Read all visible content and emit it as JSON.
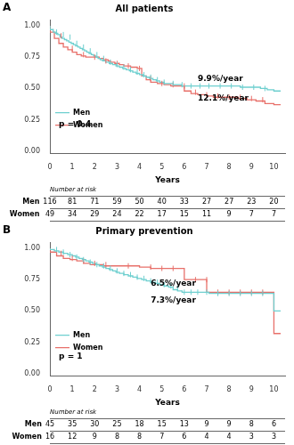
{
  "chart_data": [
    {
      "type": "step",
      "panel_label": "A",
      "title": "All patients",
      "x_label": "Years",
      "xlim": [
        0,
        10.5
      ],
      "ylim": [
        -0.02,
        1.05
      ],
      "xticks": [
        0,
        1,
        2,
        3,
        4,
        5,
        6,
        7,
        8,
        9,
        10
      ],
      "yticks": [
        {
          "value": 0.0,
          "label": "0.00"
        },
        0.25,
        {
          "value": 0.5,
          "label": "0.50"
        },
        0.75,
        {
          "value": 1.0,
          "label": "1.00"
        }
      ],
      "grid": false,
      "legend": "upper right",
      "series": [
        {
          "name": "Men",
          "color": "#6ecfcf",
          "x": [
            0,
            0.15,
            0.25,
            0.35,
            0.45,
            0.55,
            0.65,
            0.75,
            0.85,
            0.95,
            1.05,
            1.15,
            1.25,
            1.35,
            1.45,
            1.55,
            1.65,
            1.75,
            1.85,
            1.95,
            2.05,
            2.15,
            2.25,
            2.35,
            2.5,
            2.65,
            2.8,
            2.95,
            3.1,
            3.25,
            3.4,
            3.55,
            3.7,
            3.85,
            4.0,
            4.15,
            4.3,
            4.45,
            4.6,
            4.75,
            4.9,
            5.1,
            5.3,
            5.5,
            5.7,
            5.9,
            6.1,
            6.4,
            6.7,
            7.0,
            7.3,
            7.6,
            7.9,
            8.2,
            8.5,
            8.8,
            9.1,
            9.4,
            9.7,
            10.0,
            10.3
          ],
          "values": [
            1.0,
            0.97,
            0.95,
            0.94,
            0.93,
            0.91,
            0.9,
            0.89,
            0.88,
            0.87,
            0.86,
            0.85,
            0.84,
            0.83,
            0.82,
            0.81,
            0.8,
            0.79,
            0.78,
            0.77,
            0.76,
            0.75,
            0.74,
            0.73,
            0.72,
            0.71,
            0.7,
            0.69,
            0.68,
            0.67,
            0.66,
            0.65,
            0.64,
            0.63,
            0.62,
            0.61,
            0.6,
            0.59,
            0.58,
            0.57,
            0.56,
            0.55,
            0.54,
            0.54,
            0.53,
            0.53,
            0.52,
            0.52,
            0.52,
            0.52,
            0.52,
            0.52,
            0.52,
            0.52,
            0.52,
            0.51,
            0.51,
            0.51,
            0.5,
            0.49,
            0.48
          ],
          "censored": {
            "x": [
              0.3,
              0.6,
              0.9,
              1.2,
              1.5,
              1.8,
              2.1,
              2.4,
              2.7,
              3.0,
              3.3,
              3.6,
              3.9,
              4.2,
              4.5,
              4.8,
              5.1,
              5.5,
              5.9,
              6.3,
              6.7,
              7.1,
              7.6,
              8.1,
              8.6,
              9.1,
              9.6
            ],
            "values": [
              0.95,
              0.93,
              0.91,
              0.86,
              0.83,
              0.8,
              0.77,
              0.74,
              0.71,
              0.69,
              0.67,
              0.65,
              0.63,
              0.61,
              0.59,
              0.57,
              0.55,
              0.54,
              0.53,
              0.52,
              0.52,
              0.52,
              0.52,
              0.52,
              0.51,
              0.51,
              0.5
            ]
          }
        },
        {
          "name": "Women",
          "color": "#e8706a",
          "x": [
            0,
            0.2,
            0.4,
            0.6,
            0.8,
            1.0,
            1.2,
            1.4,
            1.6,
            1.8,
            2.0,
            2.2,
            2.4,
            2.6,
            2.7,
            2.9,
            3.1,
            3.3,
            3.6,
            3.9,
            4.1,
            4.3,
            4.5,
            4.8,
            5.1,
            5.4,
            5.8,
            6.0,
            6.3,
            6.6,
            7.0,
            7.3,
            7.7,
            8.0,
            8.4,
            8.8,
            9.2,
            9.6,
            10.0,
            10.3
          ],
          "values": [
            1.0,
            0.95,
            0.9,
            0.86,
            0.83,
            0.81,
            0.79,
            0.77,
            0.76,
            0.75,
            0.75,
            0.75,
            0.74,
            0.73,
            0.72,
            0.71,
            0.7,
            0.69,
            0.68,
            0.67,
            0.66,
            0.6,
            0.57,
            0.55,
            0.54,
            0.53,
            0.52,
            0.52,
            0.48,
            0.46,
            0.45,
            0.44,
            0.43,
            0.43,
            0.43,
            0.42,
            0.41,
            0.4,
            0.38,
            0.37
          ],
          "censored": {
            "x": [
              0.5,
              1.0,
              1.5,
              2.0,
              2.5,
              3.0,
              3.5,
              4.0,
              4.5,
              5.0,
              5.5,
              6.0,
              6.5,
              7.0,
              7.5,
              8.0,
              8.5,
              9.0,
              9.5
            ],
            "values": [
              0.92,
              0.82,
              0.77,
              0.75,
              0.72,
              0.7,
              0.68,
              0.66,
              0.58,
              0.54,
              0.53,
              0.52,
              0.47,
              0.45,
              0.44,
              0.43,
              0.43,
              0.42,
              0.41
            ]
          }
        }
      ],
      "annotations": [
        {
          "text": "9.9%/year",
          "x": 6.6,
          "y": 0.56
        },
        {
          "text": "12.1%/year",
          "x": 6.6,
          "y": 0.4
        },
        {
          "text": "p = 0.4",
          "x": 0.4,
          "y": 0.2
        }
      ],
      "risk_table": {
        "title": "Number at risk",
        "rows": [
          {
            "name": "Men",
            "values": [
              116,
              81,
              71,
              59,
              50,
              40,
              33,
              27,
              27,
              23,
              20
            ]
          },
          {
            "name": "Women",
            "values": [
              49,
              34,
              29,
              24,
              22,
              17,
              15,
              11,
              9,
              7,
              7
            ]
          }
        ]
      }
    },
    {
      "type": "step",
      "panel_label": "B",
      "title": "Primary prevention",
      "x_label": "Years",
      "xlim": [
        0,
        10.5
      ],
      "ylim": [
        -0.02,
        1.05
      ],
      "xticks": [
        0,
        1,
        2,
        3,
        4,
        5,
        6,
        7,
        8,
        9,
        10
      ],
      "yticks": [
        {
          "value": 0.0,
          "label": "0.00"
        },
        0.25,
        {
          "value": 0.5,
          "label": "0.50"
        },
        0.75,
        {
          "value": 1.0,
          "label": "1.00"
        }
      ],
      "grid": false,
      "legend": "upper right",
      "series": [
        {
          "name": "Men",
          "color": "#6ecfcf",
          "x": [
            0,
            0.2,
            0.4,
            0.6,
            0.8,
            1.0,
            1.15,
            1.3,
            1.45,
            1.6,
            1.75,
            1.9,
            2.05,
            2.2,
            2.35,
            2.5,
            2.65,
            2.8,
            2.95,
            3.1,
            3.3,
            3.5,
            3.7,
            3.9,
            4.1,
            4.3,
            4.5,
            4.7,
            4.9,
            5.1,
            5.3,
            5.5,
            5.7,
            5.9,
            6.1,
            6.3,
            6.5,
            6.8,
            7.1,
            7.5,
            8.0,
            8.5,
            9.0,
            9.5,
            10.0,
            10.3
          ],
          "values": [
            1.0,
            0.99,
            0.98,
            0.97,
            0.96,
            0.95,
            0.94,
            0.93,
            0.92,
            0.91,
            0.9,
            0.89,
            0.88,
            0.87,
            0.86,
            0.85,
            0.84,
            0.83,
            0.82,
            0.81,
            0.8,
            0.79,
            0.78,
            0.77,
            0.76,
            0.75,
            0.74,
            0.73,
            0.72,
            0.71,
            0.7,
            0.69,
            0.67,
            0.66,
            0.65,
            0.65,
            0.65,
            0.65,
            0.65,
            0.64,
            0.64,
            0.64,
            0.64,
            0.64,
            0.64,
            0.5
          ],
          "censored": {
            "x": [
              0.3,
              0.6,
              0.9,
              1.2,
              1.5,
              1.8,
              2.1,
              2.4,
              2.7,
              3.0,
              3.3,
              3.6,
              3.9,
              4.2,
              4.5,
              4.8,
              5.1,
              5.4,
              5.7,
              6.0,
              6.3,
              6.6,
              7.0,
              7.5,
              8.0,
              8.5,
              9.0,
              9.5
            ],
            "values": [
              0.99,
              0.97,
              0.95,
              0.93,
              0.91,
              0.89,
              0.87,
              0.86,
              0.84,
              0.82,
              0.8,
              0.79,
              0.77,
              0.76,
              0.74,
              0.73,
              0.71,
              0.7,
              0.68,
              0.65,
              0.65,
              0.65,
              0.65,
              0.64,
              0.64,
              0.64,
              0.64,
              0.64
            ]
          }
        },
        {
          "name": "Women",
          "color": "#e8706a",
          "x": [
            0,
            0.3,
            0.6,
            0.9,
            1.2,
            1.5,
            1.8,
            2.1,
            2.4,
            2.7,
            3.0,
            3.3,
            3.6,
            4.0,
            4.5,
            5.0,
            5.5,
            6.0,
            6.5,
            7.0,
            7.5,
            8.0,
            8.5,
            9.0,
            9.5,
            10.0,
            10.3
          ],
          "values": [
            1.0,
            0.97,
            0.94,
            0.92,
            0.91,
            0.9,
            0.88,
            0.87,
            0.87,
            0.86,
            0.86,
            0.86,
            0.86,
            0.86,
            0.85,
            0.84,
            0.84,
            0.84,
            0.75,
            0.75,
            0.65,
            0.65,
            0.65,
            0.65,
            0.65,
            0.65,
            0.32
          ],
          "censored": {
            "x": [
              0.5,
              1.0,
              1.5,
              2.0,
              2.5,
              3.5,
              4.5,
              5.0,
              5.5,
              6.5,
              7.0,
              7.5,
              8.0,
              8.5,
              9.0,
              9.5
            ],
            "values": [
              0.96,
              0.92,
              0.9,
              0.88,
              0.87,
              0.86,
              0.85,
              0.84,
              0.84,
              0.75,
              0.75,
              0.65,
              0.65,
              0.65,
              0.65,
              0.65
            ]
          }
        }
      ],
      "annotations": [
        {
          "text": "6.5%/year",
          "x": 4.5,
          "y": 0.7
        },
        {
          "text": "7.3%/year",
          "x": 4.5,
          "y": 0.57
        },
        {
          "text": "p = 1",
          "x": 0.4,
          "y": 0.12
        }
      ],
      "risk_table": {
        "title": "Number at risk",
        "rows": [
          {
            "name": "Men",
            "values": [
              45,
              35,
              30,
              25,
              18,
              15,
              13,
              9,
              9,
              8,
              6
            ]
          },
          {
            "name": "Women",
            "values": [
              16,
              12,
              9,
              8,
              8,
              7,
              6,
              4,
              4,
              3,
              3
            ]
          }
        ]
      }
    }
  ]
}
